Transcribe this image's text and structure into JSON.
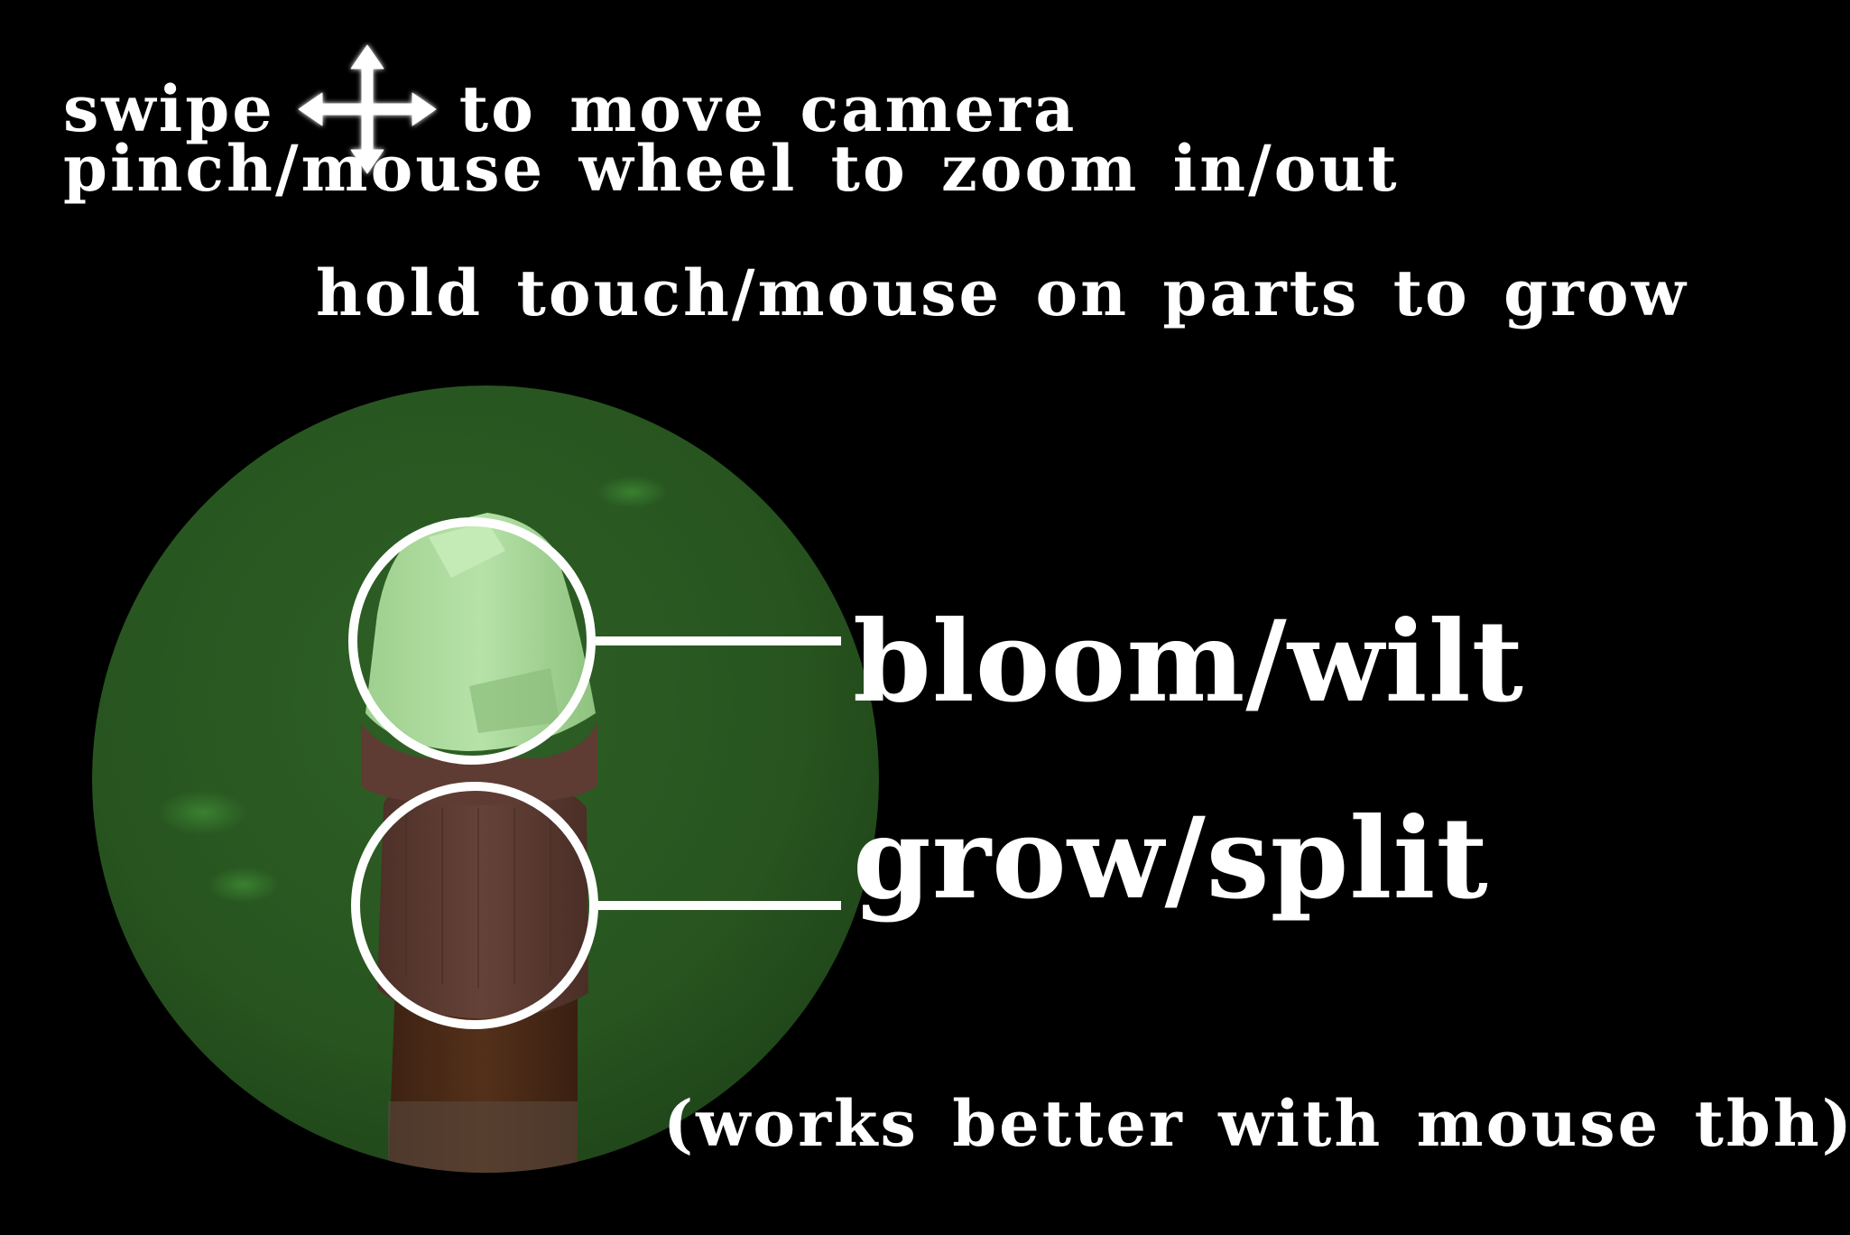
{
  "instructions": {
    "swipe_word": "swipe",
    "move_camera": "to move camera",
    "move_icon": "four-way-arrows-icon",
    "zoom": "pinch/mouse wheel to zoom in/out",
    "grow_hint": "hold touch/mouse on parts to grow"
  },
  "labels": {
    "bloom": "bloom/wilt",
    "grow": "grow/split"
  },
  "note": "(works better with mouse tbh)",
  "colors": {
    "background": "#000000",
    "grass": "#2a5a22",
    "bud": "#a8d89a",
    "stem": "#5a3a30",
    "text": "#ffffff"
  }
}
